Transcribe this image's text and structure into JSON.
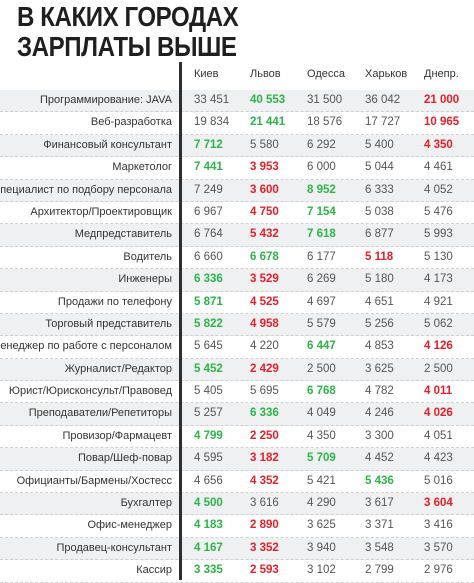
{
  "title": {
    "line1": "В КАКИХ ГОРОДАХ",
    "line2": "ЗАРПЛАТЫ ВЫШЕ"
  },
  "colors": {
    "max": "#2db34a",
    "min": "#e3202a",
    "normal": "#555555"
  },
  "cities": [
    "Киев",
    "Львов",
    "Одесса",
    "Харьков",
    "Днепр."
  ],
  "rows": [
    {
      "label": "Программирование: JAVA",
      "values": [
        "33 451",
        "40 553",
        "31 500",
        "36 042",
        "21 000"
      ],
      "hl": [
        "",
        "g",
        "",
        "",
        "r"
      ]
    },
    {
      "label": "Веб-разработка",
      "values": [
        "19 834",
        "21 441",
        "18 576",
        "17 727",
        "10 965"
      ],
      "hl": [
        "",
        "g",
        "",
        "",
        "r"
      ]
    },
    {
      "label": "Финансовый консультант",
      "values": [
        "7 712",
        "5 580",
        "6 292",
        "5 400",
        "4 350"
      ],
      "hl": [
        "g",
        "",
        "",
        "",
        "r"
      ]
    },
    {
      "label": "Маркетолог",
      "values": [
        "7 441",
        "3 953",
        "6 000",
        "5 044",
        "4 461"
      ],
      "hl": [
        "g",
        "r",
        "",
        "",
        ""
      ]
    },
    {
      "label": "Специалист по подбору персонала",
      "values": [
        "7 249",
        "3 600",
        "8 952",
        "6 333",
        "4 052"
      ],
      "hl": [
        "",
        "r",
        "g",
        "",
        ""
      ]
    },
    {
      "label": "Архитектор/Проектировщик",
      "values": [
        "6 967",
        "4 750",
        "7 154",
        "5 038",
        "5 476"
      ],
      "hl": [
        "",
        "r",
        "g",
        "",
        ""
      ]
    },
    {
      "label": "Медпредставитель",
      "values": [
        "6 764",
        "5 432",
        "7 618",
        "6 877",
        "5 993"
      ],
      "hl": [
        "",
        "r",
        "g",
        "",
        ""
      ]
    },
    {
      "label": "Водитель",
      "values": [
        "6 660",
        "6 678",
        "6 177",
        "5 118",
        "5 130"
      ],
      "hl": [
        "",
        "g",
        "",
        "r",
        ""
      ]
    },
    {
      "label": "Инженеры",
      "values": [
        "6 336",
        "3 529",
        "6 269",
        "5 180",
        "4 173"
      ],
      "hl": [
        "g",
        "r",
        "",
        "",
        ""
      ]
    },
    {
      "label": "Продажи по телефону",
      "values": [
        "5 871",
        "4 525",
        "4 697",
        "4 651",
        "4 921"
      ],
      "hl": [
        "g",
        "r",
        "",
        "",
        ""
      ]
    },
    {
      "label": "Торговый представитель",
      "values": [
        "5 822",
        "4 958",
        "5 579",
        "5 256",
        "5 062"
      ],
      "hl": [
        "g",
        "r",
        "",
        "",
        ""
      ]
    },
    {
      "label": "Менеджер по работе с персоналом",
      "values": [
        "5 645",
        "4 220",
        "6 447",
        "4 853",
        "4 126"
      ],
      "hl": [
        "",
        "",
        "g",
        "",
        "r"
      ]
    },
    {
      "label": "Журналист/Редактор",
      "values": [
        "5 452",
        "2 429",
        "2 500",
        "3 625",
        "2 500"
      ],
      "hl": [
        "g",
        "r",
        "",
        "",
        ""
      ]
    },
    {
      "label": "Юрист/Юрисконсульт/Правовед",
      "values": [
        "5 405",
        "5 695",
        "6 768",
        "4 782",
        "4 011"
      ],
      "hl": [
        "",
        "",
        "g",
        "",
        "r"
      ]
    },
    {
      "label": "Преподаватели/Репетиторы",
      "values": [
        "5 257",
        "6 336",
        "4 049",
        "4 246",
        "4 026"
      ],
      "hl": [
        "",
        "g",
        "",
        "",
        "r"
      ]
    },
    {
      "label": "Провизор/Фармацевт",
      "values": [
        "4 799",
        "2 250",
        "4 350",
        "3 300",
        "4 051"
      ],
      "hl": [
        "g",
        "r",
        "",
        "",
        ""
      ]
    },
    {
      "label": "Повар/Шеф-повар",
      "values": [
        "4 595",
        "3 182",
        "5 709",
        "4 452",
        "4 423"
      ],
      "hl": [
        "",
        "r",
        "g",
        "",
        ""
      ]
    },
    {
      "label": "Официанты/Бармены/Хостесс",
      "values": [
        "4 656",
        "4 352",
        "5 421",
        "5 436",
        "5 016"
      ],
      "hl": [
        "",
        "r",
        "",
        "g",
        ""
      ]
    },
    {
      "label": "Бухгалтер",
      "values": [
        "4 500",
        "3 616",
        "4 290",
        "3 617",
        "3 604"
      ],
      "hl": [
        "g",
        "",
        "",
        "",
        "r"
      ]
    },
    {
      "label": "Офис-менеджер",
      "values": [
        "4 183",
        "2 890",
        "3 625",
        "3 371",
        "3 416"
      ],
      "hl": [
        "g",
        "r",
        "",
        "",
        ""
      ]
    },
    {
      "label": "Продавец-консультант",
      "values": [
        "4 167",
        "3 352",
        "3 940",
        "3 548",
        "3 570"
      ],
      "hl": [
        "g",
        "r",
        "",
        "",
        ""
      ]
    },
    {
      "label": "Кассир",
      "values": [
        "3 335",
        "2 593",
        "3 102",
        "2 799",
        "2 976"
      ],
      "hl": [
        "g",
        "r",
        "",
        "",
        ""
      ]
    }
  ]
}
